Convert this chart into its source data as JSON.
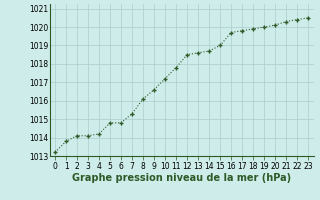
{
  "x": [
    0,
    1,
    2,
    3,
    4,
    5,
    6,
    7,
    8,
    9,
    10,
    11,
    12,
    13,
    14,
    15,
    16,
    17,
    18,
    19,
    20,
    21,
    22,
    23
  ],
  "y": [
    1013.2,
    1013.8,
    1014.1,
    1014.1,
    1014.2,
    1014.8,
    1014.8,
    1015.3,
    1016.1,
    1016.6,
    1017.2,
    1017.8,
    1018.5,
    1018.6,
    1018.7,
    1019.0,
    1019.7,
    1019.8,
    1019.9,
    1020.0,
    1020.1,
    1020.3,
    1020.4,
    1020.5
  ],
  "ylim": [
    1013.0,
    1021.25
  ],
  "xlim": [
    -0.5,
    23.5
  ],
  "yticks": [
    1013,
    1014,
    1015,
    1016,
    1017,
    1018,
    1019,
    1020,
    1021
  ],
  "xticks": [
    0,
    1,
    2,
    3,
    4,
    5,
    6,
    7,
    8,
    9,
    10,
    11,
    12,
    13,
    14,
    15,
    16,
    17,
    18,
    19,
    20,
    21,
    22,
    23
  ],
  "xlabel": "Graphe pression niveau de la mer (hPa)",
  "line_color": "#2d5a27",
  "marker": "+",
  "marker_size": 3.5,
  "bg_color": "#ceecea",
  "grid_color": "#aacfcc",
  "tick_label_fontsize": 5.5,
  "xlabel_fontsize": 7,
  "line_width": 0.8
}
